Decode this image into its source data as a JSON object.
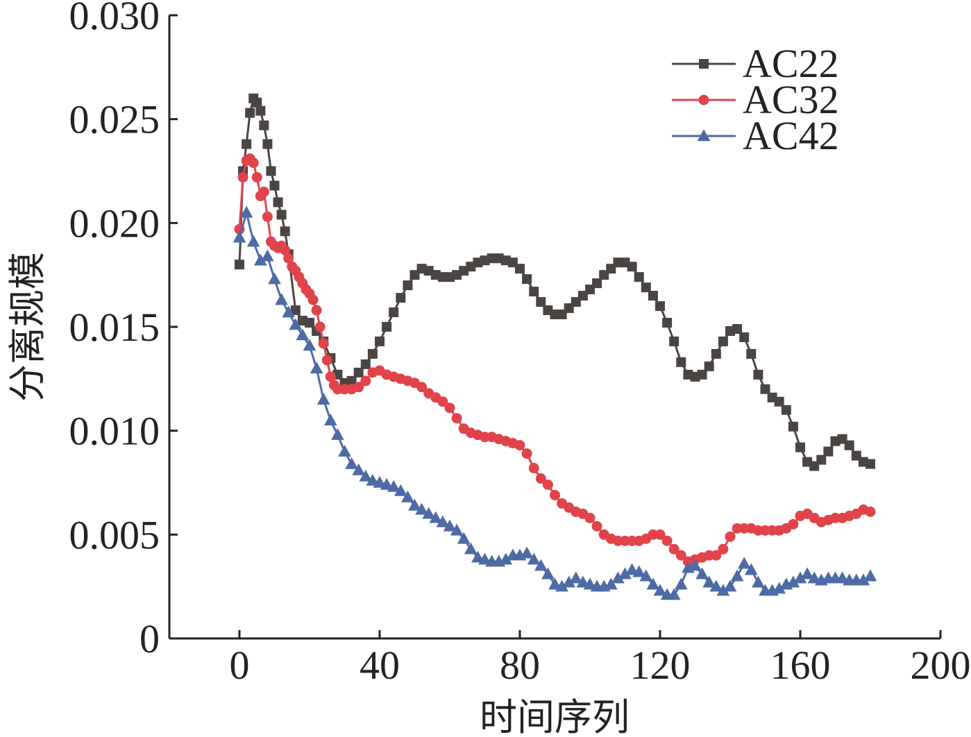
{
  "chart_data": {
    "type": "line",
    "title": "",
    "xlabel": "时间序列",
    "ylabel": "分离规模",
    "xlim": [
      -20,
      200
    ],
    "ylim": [
      0,
      0.03
    ],
    "x_ticks": [
      "0",
      "40",
      "80",
      "120",
      "160",
      "200"
    ],
    "x_tick_values": [
      0,
      40,
      80,
      120,
      160,
      200
    ],
    "y_ticks": [
      "0",
      "0.005",
      "0.010",
      "0.015",
      "0.020",
      "0.025",
      "0.030"
    ],
    "y_tick_values": [
      0,
      0.005,
      0.01,
      0.015,
      0.02,
      0.025,
      0.03
    ],
    "legend_position": "top-right",
    "series": [
      {
        "name": "AC22",
        "color": "#4a4442",
        "marker": "square",
        "points": [
          [
            0,
            0.018
          ],
          [
            1,
            0.0225
          ],
          [
            2,
            0.0238
          ],
          [
            3,
            0.0253
          ],
          [
            4,
            0.026
          ],
          [
            5,
            0.0258
          ],
          [
            6,
            0.0254
          ],
          [
            7,
            0.0247
          ],
          [
            8,
            0.0238
          ],
          [
            9,
            0.0225
          ],
          [
            10,
            0.0218
          ],
          [
            11,
            0.021
          ],
          [
            12,
            0.0204
          ],
          [
            13,
            0.0196
          ],
          [
            14,
            0.0185
          ],
          [
            16,
            0.0158
          ],
          [
            18,
            0.0153
          ],
          [
            20,
            0.0152
          ],
          [
            22,
            0.0148
          ],
          [
            24,
            0.0143
          ],
          [
            26,
            0.0135
          ],
          [
            28,
            0.0127
          ],
          [
            30,
            0.0123
          ],
          [
            32,
            0.0124
          ],
          [
            34,
            0.0128
          ],
          [
            36,
            0.0132
          ],
          [
            38,
            0.0137
          ],
          [
            40,
            0.0143
          ],
          [
            42,
            0.015
          ],
          [
            44,
            0.0157
          ],
          [
            46,
            0.0164
          ],
          [
            48,
            0.017
          ],
          [
            50,
            0.0175
          ],
          [
            52,
            0.0178
          ],
          [
            54,
            0.0177
          ],
          [
            56,
            0.0175
          ],
          [
            58,
            0.0174
          ],
          [
            60,
            0.0174
          ],
          [
            62,
            0.0175
          ],
          [
            64,
            0.0177
          ],
          [
            66,
            0.0179
          ],
          [
            68,
            0.0181
          ],
          [
            70,
            0.0182
          ],
          [
            72,
            0.0183
          ],
          [
            74,
            0.0183
          ],
          [
            76,
            0.0182
          ],
          [
            78,
            0.0181
          ],
          [
            80,
            0.0178
          ],
          [
            82,
            0.0173
          ],
          [
            84,
            0.0167
          ],
          [
            86,
            0.0162
          ],
          [
            88,
            0.0158
          ],
          [
            90,
            0.0156
          ],
          [
            92,
            0.0156
          ],
          [
            94,
            0.0159
          ],
          [
            96,
            0.0162
          ],
          [
            98,
            0.0165
          ],
          [
            100,
            0.0168
          ],
          [
            102,
            0.0171
          ],
          [
            104,
            0.0175
          ],
          [
            106,
            0.0178
          ],
          [
            108,
            0.0181
          ],
          [
            110,
            0.0181
          ],
          [
            112,
            0.0179
          ],
          [
            114,
            0.0174
          ],
          [
            116,
            0.0169
          ],
          [
            118,
            0.0165
          ],
          [
            120,
            0.016
          ],
          [
            122,
            0.0152
          ],
          [
            124,
            0.0143
          ],
          [
            126,
            0.0133
          ],
          [
            128,
            0.0127
          ],
          [
            130,
            0.0126
          ],
          [
            132,
            0.0127
          ],
          [
            134,
            0.0131
          ],
          [
            136,
            0.0137
          ],
          [
            138,
            0.0143
          ],
          [
            140,
            0.0148
          ],
          [
            142,
            0.0149
          ],
          [
            144,
            0.0145
          ],
          [
            146,
            0.0137
          ],
          [
            148,
            0.0127
          ],
          [
            150,
            0.012
          ],
          [
            152,
            0.0116
          ],
          [
            154,
            0.0114
          ],
          [
            156,
            0.011
          ],
          [
            158,
            0.0102
          ],
          [
            160,
            0.0092
          ],
          [
            162,
            0.0085
          ],
          [
            164,
            0.0083
          ],
          [
            166,
            0.0086
          ],
          [
            168,
            0.009
          ],
          [
            170,
            0.0095
          ],
          [
            172,
            0.0096
          ],
          [
            174,
            0.0093
          ],
          [
            176,
            0.0088
          ],
          [
            178,
            0.0085
          ],
          [
            180,
            0.0084
          ]
        ]
      },
      {
        "name": "AC32",
        "color": "#e1434b",
        "marker": "circle",
        "points": [
          [
            0,
            0.0197
          ],
          [
            1,
            0.0222
          ],
          [
            2,
            0.023
          ],
          [
            3,
            0.0231
          ],
          [
            4,
            0.0229
          ],
          [
            5,
            0.0222
          ],
          [
            6,
            0.0213
          ],
          [
            7,
            0.0215
          ],
          [
            8,
            0.0203
          ],
          [
            9,
            0.0191
          ],
          [
            10,
            0.0189
          ],
          [
            11,
            0.0188
          ],
          [
            12,
            0.0189
          ],
          [
            13,
            0.0187
          ],
          [
            14,
            0.0183
          ],
          [
            15,
            0.0179
          ],
          [
            16,
            0.0177
          ],
          [
            17,
            0.0174
          ],
          [
            18,
            0.0171
          ],
          [
            19,
            0.0168
          ],
          [
            20,
            0.0166
          ],
          [
            21,
            0.0163
          ],
          [
            22,
            0.0158
          ],
          [
            23,
            0.015
          ],
          [
            24,
            0.0142
          ],
          [
            25,
            0.0134
          ],
          [
            26,
            0.0126
          ],
          [
            27,
            0.0122
          ],
          [
            28,
            0.012
          ],
          [
            30,
            0.012
          ],
          [
            32,
            0.012
          ],
          [
            34,
            0.0121
          ],
          [
            36,
            0.0124
          ],
          [
            38,
            0.0128
          ],
          [
            40,
            0.0129
          ],
          [
            42,
            0.0127
          ],
          [
            44,
            0.0126
          ],
          [
            46,
            0.0125
          ],
          [
            48,
            0.0124
          ],
          [
            50,
            0.0123
          ],
          [
            52,
            0.0121
          ],
          [
            54,
            0.0118
          ],
          [
            56,
            0.0116
          ],
          [
            58,
            0.0114
          ],
          [
            60,
            0.0111
          ],
          [
            62,
            0.0106
          ],
          [
            64,
            0.0101
          ],
          [
            66,
            0.0099
          ],
          [
            68,
            0.0098
          ],
          [
            70,
            0.0097
          ],
          [
            72,
            0.0097
          ],
          [
            74,
            0.0096
          ],
          [
            76,
            0.0095
          ],
          [
            78,
            0.0094
          ],
          [
            80,
            0.0093
          ],
          [
            82,
            0.0089
          ],
          [
            84,
            0.0082
          ],
          [
            86,
            0.0077
          ],
          [
            88,
            0.0074
          ],
          [
            90,
            0.0069
          ],
          [
            92,
            0.0065
          ],
          [
            94,
            0.0063
          ],
          [
            96,
            0.0061
          ],
          [
            98,
            0.006
          ],
          [
            100,
            0.0058
          ],
          [
            102,
            0.0054
          ],
          [
            104,
            0.005
          ],
          [
            106,
            0.0048
          ],
          [
            108,
            0.0047
          ],
          [
            110,
            0.0047
          ],
          [
            112,
            0.0047
          ],
          [
            114,
            0.0047
          ],
          [
            116,
            0.0048
          ],
          [
            118,
            0.005
          ],
          [
            120,
            0.005
          ],
          [
            122,
            0.0047
          ],
          [
            124,
            0.0043
          ],
          [
            126,
            0.004
          ],
          [
            128,
            0.0037
          ],
          [
            130,
            0.0038
          ],
          [
            132,
            0.0039
          ],
          [
            134,
            0.004
          ],
          [
            136,
            0.004
          ],
          [
            138,
            0.0043
          ],
          [
            140,
            0.0049
          ],
          [
            142,
            0.0053
          ],
          [
            144,
            0.0053
          ],
          [
            146,
            0.0053
          ],
          [
            148,
            0.0052
          ],
          [
            150,
            0.0052
          ],
          [
            152,
            0.0052
          ],
          [
            154,
            0.0052
          ],
          [
            156,
            0.0053
          ],
          [
            158,
            0.0055
          ],
          [
            160,
            0.0059
          ],
          [
            162,
            0.006
          ],
          [
            164,
            0.0058
          ],
          [
            166,
            0.0056
          ],
          [
            168,
            0.0057
          ],
          [
            170,
            0.0058
          ],
          [
            172,
            0.0058
          ],
          [
            174,
            0.0059
          ],
          [
            176,
            0.006
          ],
          [
            178,
            0.0062
          ],
          [
            180,
            0.0061
          ]
        ]
      },
      {
        "name": "AC42",
        "color": "#4e6aa5",
        "marker": "triangle",
        "points": [
          [
            0,
            0.0193
          ],
          [
            2,
            0.0205
          ],
          [
            4,
            0.0191
          ],
          [
            6,
            0.0182
          ],
          [
            8,
            0.0184
          ],
          [
            10,
            0.0173
          ],
          [
            12,
            0.0163
          ],
          [
            14,
            0.0157
          ],
          [
            16,
            0.0151
          ],
          [
            18,
            0.0146
          ],
          [
            20,
            0.0141
          ],
          [
            22,
            0.013
          ],
          [
            24,
            0.0115
          ],
          [
            26,
            0.0105
          ],
          [
            28,
            0.0098
          ],
          [
            30,
            0.009
          ],
          [
            32,
            0.0084
          ],
          [
            34,
            0.0081
          ],
          [
            36,
            0.0078
          ],
          [
            38,
            0.0076
          ],
          [
            40,
            0.0075
          ],
          [
            42,
            0.0074
          ],
          [
            44,
            0.0073
          ],
          [
            46,
            0.0071
          ],
          [
            48,
            0.0068
          ],
          [
            50,
            0.0064
          ],
          [
            52,
            0.0062
          ],
          [
            54,
            0.006
          ],
          [
            56,
            0.0058
          ],
          [
            58,
            0.0056
          ],
          [
            60,
            0.0054
          ],
          [
            62,
            0.0052
          ],
          [
            64,
            0.0048
          ],
          [
            66,
            0.0043
          ],
          [
            68,
            0.0039
          ],
          [
            70,
            0.0038
          ],
          [
            72,
            0.0037
          ],
          [
            74,
            0.0037
          ],
          [
            76,
            0.0038
          ],
          [
            78,
            0.004
          ],
          [
            80,
            0.004
          ],
          [
            82,
            0.0041
          ],
          [
            84,
            0.0038
          ],
          [
            86,
            0.0035
          ],
          [
            88,
            0.0031
          ],
          [
            90,
            0.0026
          ],
          [
            92,
            0.0025
          ],
          [
            94,
            0.0027
          ],
          [
            96,
            0.0029
          ],
          [
            98,
            0.0027
          ],
          [
            100,
            0.0026
          ],
          [
            102,
            0.0025
          ],
          [
            104,
            0.0025
          ],
          [
            106,
            0.0026
          ],
          [
            108,
            0.0029
          ],
          [
            110,
            0.0031
          ],
          [
            112,
            0.0033
          ],
          [
            114,
            0.0032
          ],
          [
            116,
            0.003
          ],
          [
            118,
            0.0026
          ],
          [
            120,
            0.0023
          ],
          [
            122,
            0.0021
          ],
          [
            124,
            0.0021
          ],
          [
            126,
            0.0026
          ],
          [
            128,
            0.0034
          ],
          [
            130,
            0.0035
          ],
          [
            132,
            0.0031
          ],
          [
            134,
            0.0027
          ],
          [
            136,
            0.0025
          ],
          [
            138,
            0.0023
          ],
          [
            140,
            0.0025
          ],
          [
            142,
            0.003
          ],
          [
            144,
            0.0036
          ],
          [
            146,
            0.0033
          ],
          [
            148,
            0.0027
          ],
          [
            150,
            0.0023
          ],
          [
            152,
            0.0023
          ],
          [
            154,
            0.0024
          ],
          [
            156,
            0.0026
          ],
          [
            158,
            0.0027
          ],
          [
            160,
            0.0029
          ],
          [
            162,
            0.0031
          ],
          [
            164,
            0.0029
          ],
          [
            166,
            0.0028
          ],
          [
            168,
            0.0029
          ],
          [
            170,
            0.0029
          ],
          [
            172,
            0.0029
          ],
          [
            174,
            0.0028
          ],
          [
            176,
            0.0028
          ],
          [
            178,
            0.0028
          ],
          [
            180,
            0.003
          ]
        ]
      }
    ]
  }
}
